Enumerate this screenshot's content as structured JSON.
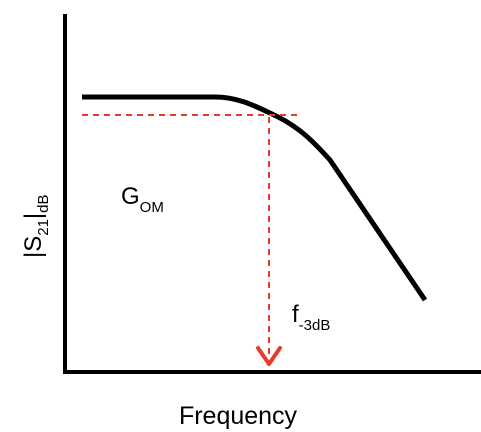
{
  "diagram": {
    "x_axis_label": "Frequency",
    "y_axis_label": {
      "main": "|S",
      "sub": "21",
      "bar": "|",
      "sub2": "dB"
    },
    "gain_label": {
      "main": "G",
      "sub": "OM"
    },
    "cutoff_label": {
      "main": "f",
      "sub": "-3dB"
    }
  },
  "colors": {
    "axis": "#000000",
    "curve": "#000000",
    "guide": "#e53c2e"
  }
}
